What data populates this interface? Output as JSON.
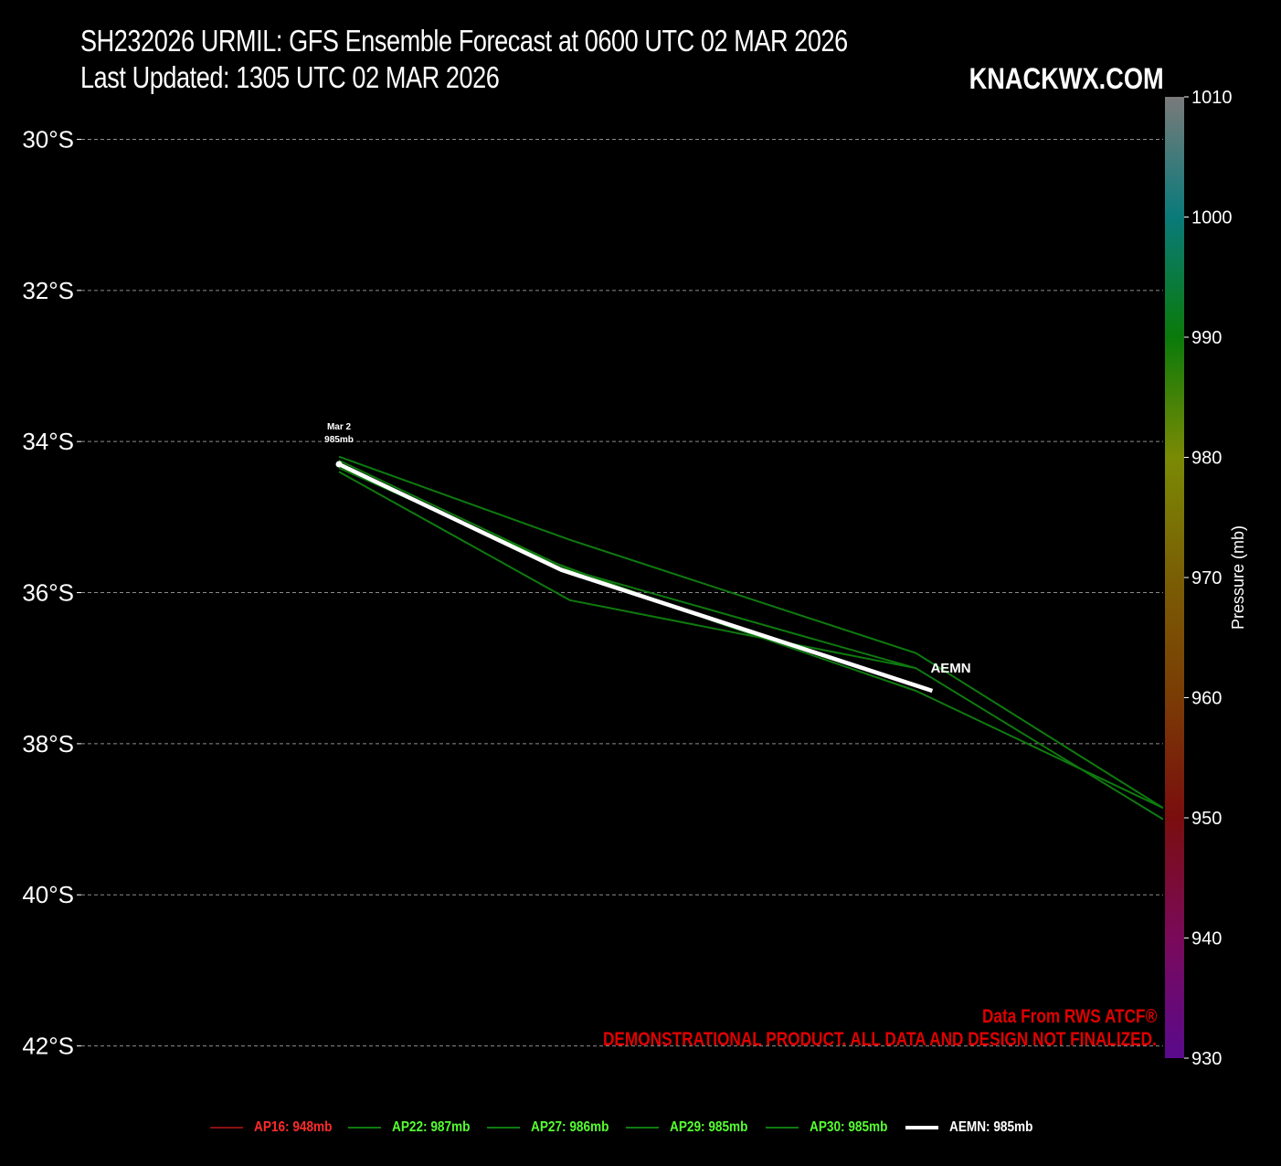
{
  "header": {
    "title_line1": "SH232026 URMIL: GFS Ensemble Forecast at 0600 UTC 02 MAR 2026",
    "title_line2": "Last Updated: 1305 UTC 02 MAR 2026",
    "brand": "KNACKWX.COM"
  },
  "credits": {
    "line1": "Data From RWS ATCF®",
    "line2": "DEMONSTRATIONAL PRODUCT. ALL DATA AND DESIGN NOT FINALIZED."
  },
  "chart_data": {
    "type": "line",
    "ylim": [
      -42.15,
      -29.45
    ],
    "y_ticks": [
      {
        "value": -30,
        "label": "30°S"
      },
      {
        "value": -32,
        "label": "32°S"
      },
      {
        "value": -34,
        "label": "34°S"
      },
      {
        "value": -36,
        "label": "36°S"
      },
      {
        "value": -38,
        "label": "38°S"
      },
      {
        "value": -40,
        "label": "40°S"
      },
      {
        "value": -42,
        "label": "42°S"
      }
    ],
    "grid": true,
    "x_unit_note": "",
    "series": [
      {
        "name": "AP22",
        "color": "#0f7a0f",
        "points": [
          [
            0,
            -34.2
          ],
          [
            0.28,
            -35.3
          ],
          [
            0.7,
            -36.8
          ],
          [
            1.0,
            -38.85
          ]
        ]
      },
      {
        "name": "AP27",
        "color": "#0f7a0f",
        "points": [
          [
            0,
            -34.4
          ],
          [
            0.28,
            -36.1
          ],
          [
            0.7,
            -37.0
          ],
          [
            1.0,
            -39.0
          ]
        ]
      },
      {
        "name": "AP29",
        "color": "#0f7a0f",
        "points": [
          [
            0,
            -34.35
          ],
          [
            0.26,
            -35.6
          ],
          [
            0.46,
            -36.4
          ],
          [
            0.7,
            -37.3
          ],
          [
            1.0,
            -38.85
          ]
        ]
      },
      {
        "name": "AP30",
        "color": "#0f7a0f",
        "points": [
          [
            0,
            -34.25
          ],
          [
            0.28,
            -35.7
          ],
          [
            0.7,
            -37.0
          ]
        ]
      },
      {
        "name": "AEMN",
        "color": "#ffffff",
        "points": [
          [
            0,
            -34.3
          ],
          [
            0.27,
            -35.7
          ],
          [
            0.72,
            -37.3
          ]
        ]
      }
    ],
    "start_annotation": {
      "line1": "Mar  2",
      "line2": "985mb",
      "lat": -34.3
    },
    "end_label": "AEMN",
    "colorbar": {
      "label": "Pressure (mb)",
      "min": 930,
      "max": 1010,
      "ticks": [
        1010,
        1000,
        990,
        980,
        970,
        960,
        950,
        940,
        930
      ],
      "stops": [
        {
          "value": 930,
          "color": "#5a0a8c"
        },
        {
          "value": 940,
          "color": "#7a0a5a"
        },
        {
          "value": 950,
          "color": "#7a0e0e"
        },
        {
          "value": 960,
          "color": "#7a3c05"
        },
        {
          "value": 970,
          "color": "#7a5e05"
        },
        {
          "value": 980,
          "color": "#7a8a05"
        },
        {
          "value": 990,
          "color": "#0a7a0a"
        },
        {
          "value": 1000,
          "color": "#0a7a7a"
        },
        {
          "value": 1010,
          "color": "#7a7a7a"
        }
      ]
    },
    "legend": [
      {
        "label": "AP16: 948mb",
        "color": "#ff2b2b",
        "line": "#8a1010"
      },
      {
        "label": "AP22: 987mb",
        "color": "#55ff30",
        "line": "#0f7a0f"
      },
      {
        "label": "AP27: 986mb",
        "color": "#55ff30",
        "line": "#0f7a0f"
      },
      {
        "label": "AP29: 985mb",
        "color": "#55ff30",
        "line": "#0f7a0f"
      },
      {
        "label": "AP30: 985mb",
        "color": "#55ff30",
        "line": "#0f7a0f"
      },
      {
        "label": "AEMN: 985mb",
        "color": "#ffffff",
        "line": "#ffffff"
      }
    ]
  }
}
